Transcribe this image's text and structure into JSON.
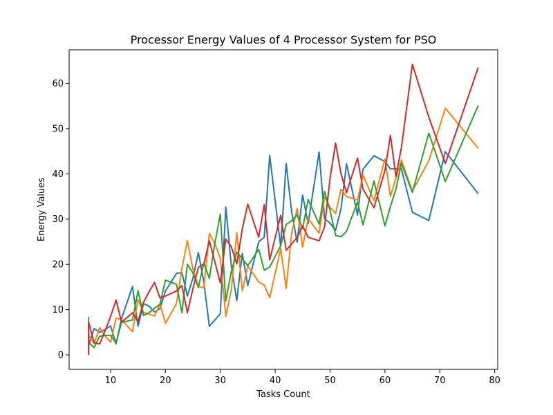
{
  "chart_data": {
    "type": "line",
    "title": "Processor Energy Values of 4 Processor System for PSO",
    "xlabel": "Tasks Count",
    "ylabel": "Energy Values",
    "xlim": [
      2.45,
      80.55
    ],
    "ylim": [
      -3.2,
      67.4
    ],
    "xticks": [
      10,
      20,
      30,
      40,
      50,
      60,
      70,
      80
    ],
    "yticks": [
      0,
      10,
      20,
      30,
      40,
      50,
      60
    ],
    "grid": false,
    "legend": "none",
    "x": [
      6,
      6,
      7,
      8,
      9,
      10,
      11,
      12,
      14,
      15,
      16,
      17,
      18,
      19,
      20,
      22,
      23,
      24,
      25,
      26,
      27,
      28,
      29,
      30,
      31,
      32,
      33,
      34,
      35,
      37,
      38,
      39,
      41,
      42,
      43,
      44,
      45,
      46,
      48,
      49,
      50,
      51,
      52,
      53,
      55,
      56,
      58,
      60,
      61,
      62,
      63,
      65,
      68,
      71,
      77
    ],
    "series": [
      {
        "color": "#1f77b4",
        "values": [
          4.2,
          2.0,
          5.8,
          5.0,
          5.6,
          6.4,
          2.4,
          8.0,
          15.1,
          6.3,
          11.3,
          10.8,
          9.5,
          10.2,
          14.1,
          18.0,
          18.2,
          13.0,
          16.9,
          22.6,
          16.1,
          6.3,
          7.7,
          9.1,
          32.7,
          19.7,
          12.0,
          22.4,
          15.3,
          25.0,
          26.0,
          44.1,
          23.9,
          42.3,
          31.6,
          24.9,
          35.3,
          29.0,
          44.8,
          30.1,
          29.1,
          27.5,
          32.3,
          42.2,
          30.9,
          41.0,
          44.0,
          42.7,
          41.1,
          41.1,
          41.1,
          31.5,
          29.7,
          44.9,
          35.6
        ]
      },
      {
        "color": "#ff7f0e",
        "values": [
          0.5,
          4.3,
          2.5,
          6.0,
          4.2,
          2.8,
          8.1,
          7.8,
          5.1,
          12.2,
          9.4,
          9.0,
          8.6,
          11.2,
          7.0,
          11.3,
          19.1,
          25.2,
          19.0,
          15.1,
          14.8,
          26.8,
          24.6,
          21.3,
          8.5,
          14.3,
          27.0,
          14.1,
          19.7,
          16.1,
          15.4,
          12.6,
          23.5,
          14.7,
          26.9,
          32.3,
          23.8,
          30.1,
          26.9,
          34.9,
          32.6,
          31.2,
          36.6,
          35.0,
          34.2,
          39.7,
          34.1,
          43.3,
          35.0,
          39.1,
          43.0,
          36.2,
          42.9,
          54.5,
          45.6
        ]
      },
      {
        "color": "#2ca02c",
        "values": [
          8.4,
          2.8,
          1.6,
          4.1,
          4.3,
          4.3,
          2.6,
          7.2,
          7.7,
          14.2,
          8.7,
          9.3,
          10.3,
          11.2,
          16.5,
          15.6,
          9.3,
          20.0,
          18.1,
          14.9,
          20.3,
          16.9,
          24.6,
          31.1,
          11.9,
          18.4,
          22.7,
          21.3,
          19.7,
          23.3,
          18.7,
          19.4,
          24.1,
          28.8,
          29.6,
          30.9,
          27.9,
          34.3,
          28.9,
          36.1,
          31.9,
          26.4,
          26.1,
          27.3,
          33.8,
          28.7,
          38.4,
          28.5,
          32.8,
          36.6,
          42.3,
          35.9,
          49.0,
          38.3,
          55.1
        ]
      },
      {
        "color": "#d62728",
        "values": [
          0.0,
          7.2,
          2.7,
          2.4,
          5.3,
          8.5,
          12.1,
          7.2,
          9.3,
          7.3,
          11.6,
          13.9,
          16.0,
          12.6,
          13.0,
          14.1,
          15.3,
          9.3,
          14.6,
          19.3,
          20.1,
          25.2,
          20.6,
          15.9,
          25.6,
          23.9,
          20.1,
          27.8,
          33.3,
          26.0,
          33.2,
          21.0,
          30.8,
          23.1,
          24.5,
          26.0,
          28.5,
          26.0,
          25.2,
          28.3,
          39.0,
          46.8,
          40.0,
          35.8,
          43.5,
          36.6,
          32.5,
          40.7,
          48.5,
          39.4,
          45.8,
          64.2,
          52.5,
          42.3,
          63.5
        ]
      }
    ]
  }
}
